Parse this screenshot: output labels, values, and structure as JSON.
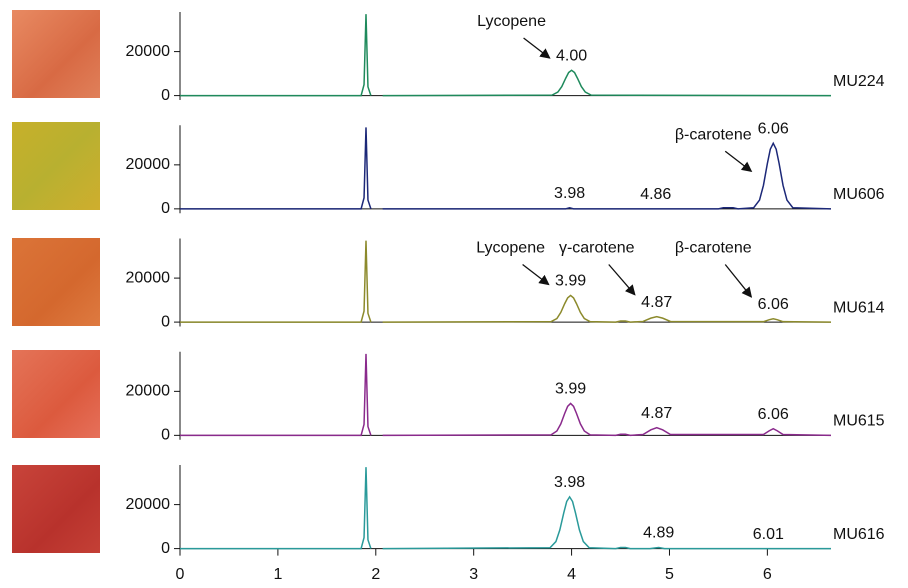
{
  "chart_data": [
    {
      "type": "line",
      "xlim": [
        0,
        6.65
      ],
      "ylim": [
        -2000,
        38000
      ],
      "yticks": [
        0,
        20000
      ],
      "x": [
        0,
        1.85,
        1.88,
        1.9,
        1.92,
        1.95,
        2.0,
        2.07,
        3.8,
        3.86,
        3.9,
        3.94,
        3.97,
        4.0,
        4.03,
        4.06,
        4.1,
        4.14,
        4.2,
        6.65
      ],
      "series": [
        {
          "name": "MU224",
          "color": "#1f8a5c",
          "values": [
            0,
            0,
            5000,
            37000,
            4000,
            0,
            null,
            0,
            200,
            1600,
            4100,
            7900,
            10500,
            11500,
            10500,
            7900,
            4100,
            1600,
            200,
            0
          ]
        }
      ],
      "peaks": [
        {
          "value": 4.0,
          "label": "4.00",
          "name": "Lycopene"
        }
      ]
    },
    {
      "type": "line",
      "xlim": [
        0,
        6.65
      ],
      "ylim": [
        -2000,
        38000
      ],
      "yticks": [
        0,
        20000
      ],
      "x": [
        0,
        1.85,
        1.88,
        1.9,
        1.92,
        1.95,
        2.0,
        2.07,
        3.94,
        3.98,
        4.02,
        5.5,
        5.55,
        5.65,
        5.7,
        5.86,
        5.92,
        5.96,
        6.0,
        6.03,
        6.06,
        6.09,
        6.12,
        6.16,
        6.2,
        6.26,
        6.65
      ],
      "series": [
        {
          "name": "MU606",
          "color": "#1c2878",
          "values": [
            0,
            0,
            5000,
            37000,
            4000,
            0,
            null,
            0,
            0,
            500,
            0,
            0,
            500,
            500,
            0,
            500,
            4000,
            10700,
            20600,
            27100,
            29800,
            27100,
            20600,
            10700,
            4000,
            500,
            0
          ]
        }
      ],
      "peaks": [
        {
          "value": 3.98,
          "label": "3.98"
        },
        {
          "value": 4.86,
          "label": "4.86"
        },
        {
          "value": 6.06,
          "label": "6.06",
          "name": "β-carotene"
        }
      ]
    },
    {
      "type": "line",
      "xlim": [
        0,
        6.65
      ],
      "ylim": [
        -2000,
        38000
      ],
      "yticks": [
        0,
        20000
      ],
      "x": [
        0,
        1.85,
        1.88,
        1.9,
        1.92,
        1.95,
        2.0,
        2.07,
        3.79,
        3.85,
        3.89,
        3.93,
        3.96,
        3.99,
        4.02,
        4.05,
        4.09,
        4.13,
        4.19,
        4.45,
        4.5,
        4.55,
        4.6,
        4.73,
        4.81,
        4.87,
        4.93,
        5.01,
        5.96,
        6.02,
        6.06,
        6.1,
        6.16,
        6.65
      ],
      "series": [
        {
          "name": "MU614",
          "color": "#8c8a2c",
          "values": [
            0,
            0,
            5000,
            37000,
            4000,
            0,
            null,
            0,
            200,
            1600,
            4400,
            8400,
            11000,
            12100,
            11000,
            8400,
            4400,
            1600,
            200,
            0,
            500,
            500,
            0,
            300,
            1800,
            2500,
            1800,
            300,
            200,
            1100,
            1500,
            1100,
            200,
            0
          ]
        }
      ],
      "peaks": [
        {
          "value": 3.99,
          "label": "3.99",
          "name": "Lycopene"
        },
        {
          "value": 4.87,
          "label": "4.87",
          "name": "γ-carotene"
        },
        {
          "value": 6.06,
          "label": "6.06",
          "name": "β-carotene"
        }
      ]
    },
    {
      "type": "line",
      "xlim": [
        0,
        6.65
      ],
      "ylim": [
        -2000,
        38000
      ],
      "yticks": [
        0,
        20000
      ],
      "x": [
        0,
        1.85,
        1.88,
        1.9,
        1.92,
        1.95,
        2.0,
        2.07,
        3.79,
        3.85,
        3.89,
        3.93,
        3.96,
        3.99,
        4.02,
        4.05,
        4.09,
        4.13,
        4.19,
        4.45,
        4.5,
        4.55,
        4.6,
        4.73,
        4.81,
        4.87,
        4.93,
        5.01,
        5.96,
        6.02,
        6.06,
        6.1,
        6.16,
        6.65
      ],
      "series": [
        {
          "name": "MU615",
          "color": "#8a2a8c",
          "values": [
            0,
            0,
            5000,
            37000,
            4000,
            0,
            null,
            0,
            200,
            2000,
            5200,
            10000,
            13200,
            14500,
            13200,
            10000,
            5200,
            2000,
            200,
            0,
            500,
            500,
            0,
            400,
            2500,
            3500,
            2500,
            400,
            400,
            2100,
            3000,
            2100,
            400,
            0
          ]
        }
      ],
      "peaks": [
        {
          "value": 3.99,
          "label": "3.99"
        },
        {
          "value": 4.87,
          "label": "4.87"
        },
        {
          "value": 6.06,
          "label": "6.06"
        }
      ]
    },
    {
      "type": "line",
      "xlim": [
        0,
        6.65
      ],
      "ylim": [
        -2000,
        38000
      ],
      "yticks": [
        0,
        20000
      ],
      "xticks": [
        0,
        1,
        2,
        3,
        4,
        5,
        6
      ],
      "x": [
        0,
        1.85,
        1.88,
        1.9,
        1.92,
        1.95,
        2.0,
        2.07,
        3.78,
        3.84,
        3.88,
        3.92,
        3.95,
        3.98,
        4.01,
        4.04,
        4.08,
        4.12,
        4.18,
        4.45,
        4.5,
        4.55,
        4.6,
        4.8,
        4.89,
        4.95,
        6.65
      ],
      "series": [
        {
          "name": "MU616",
          "color": "#2a9a9a",
          "values": [
            0,
            0,
            5000,
            37000,
            4000,
            0,
            null,
            0,
            400,
            3200,
            8500,
            16200,
            21400,
            23500,
            21400,
            16200,
            8500,
            3200,
            400,
            0,
            500,
            500,
            0,
            0,
            500,
            0,
            0
          ]
        }
      ],
      "peaks": [
        {
          "value": 3.98,
          "label": "3.98"
        },
        {
          "value": 4.89,
          "label": "4.89"
        },
        {
          "value": 6.01,
          "label": "6.01"
        }
      ]
    }
  ]
}
